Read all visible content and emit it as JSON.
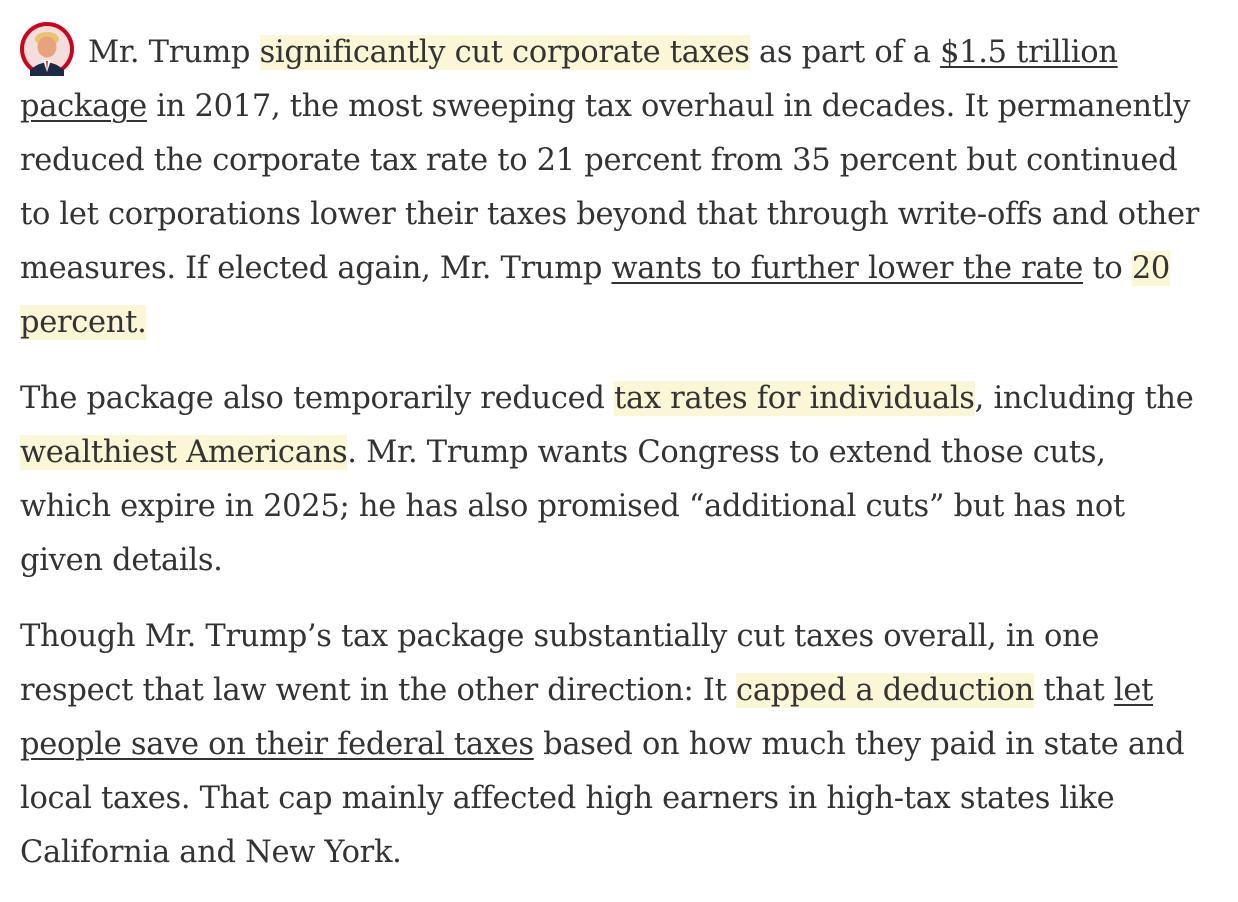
{
  "avatar": {
    "ring_color": "#d0021b",
    "bg_color": "#f3dede"
  },
  "highlight_color": "#faf6d6",
  "paragraphs": [
    {
      "segments": [
        {
          "type": "text",
          "text": "Mr. Trump "
        },
        {
          "type": "highlight",
          "text": "significantly cut corporate taxes"
        },
        {
          "type": "text",
          "text": " as part of a "
        },
        {
          "type": "link",
          "text": "$1.5 trillion package"
        },
        {
          "type": "text",
          "text": " in 2017, the most sweeping tax overhaul in decades. It permanently reduced the corporate tax rate to 21 percent from 35 percent but continued to let corporations lower their taxes beyond that through write-offs and other measures. If elected again, Mr. Trump "
        },
        {
          "type": "link",
          "text": "wants to further lower the rate"
        },
        {
          "type": "text",
          "text": " to "
        },
        {
          "type": "highlight",
          "text": "20 percent."
        }
      ]
    },
    {
      "segments": [
        {
          "type": "text",
          "text": "The package also temporarily reduced "
        },
        {
          "type": "highlight",
          "text": "tax rates for individuals"
        },
        {
          "type": "text",
          "text": ", including the "
        },
        {
          "type": "highlight",
          "text": "wealthiest Americans"
        },
        {
          "type": "text",
          "text": ". Mr. Trump wants Congress to extend those cuts, which expire in 2025; he has also promised “additional cuts” but has not given details."
        }
      ]
    },
    {
      "segments": [
        {
          "type": "text",
          "text": "Though Mr. Trump’s tax package substantially cut taxes overall, in one respect that law went in the other direction: It "
        },
        {
          "type": "highlight",
          "text": "capped a deduction"
        },
        {
          "type": "text",
          "text": " that "
        },
        {
          "type": "link",
          "text": "let people save on their federal taxes"
        },
        {
          "type": "text",
          "text": " based on how much they paid in state and local taxes. That cap mainly affected high earners in high-tax states like California and New York."
        }
      ]
    }
  ]
}
